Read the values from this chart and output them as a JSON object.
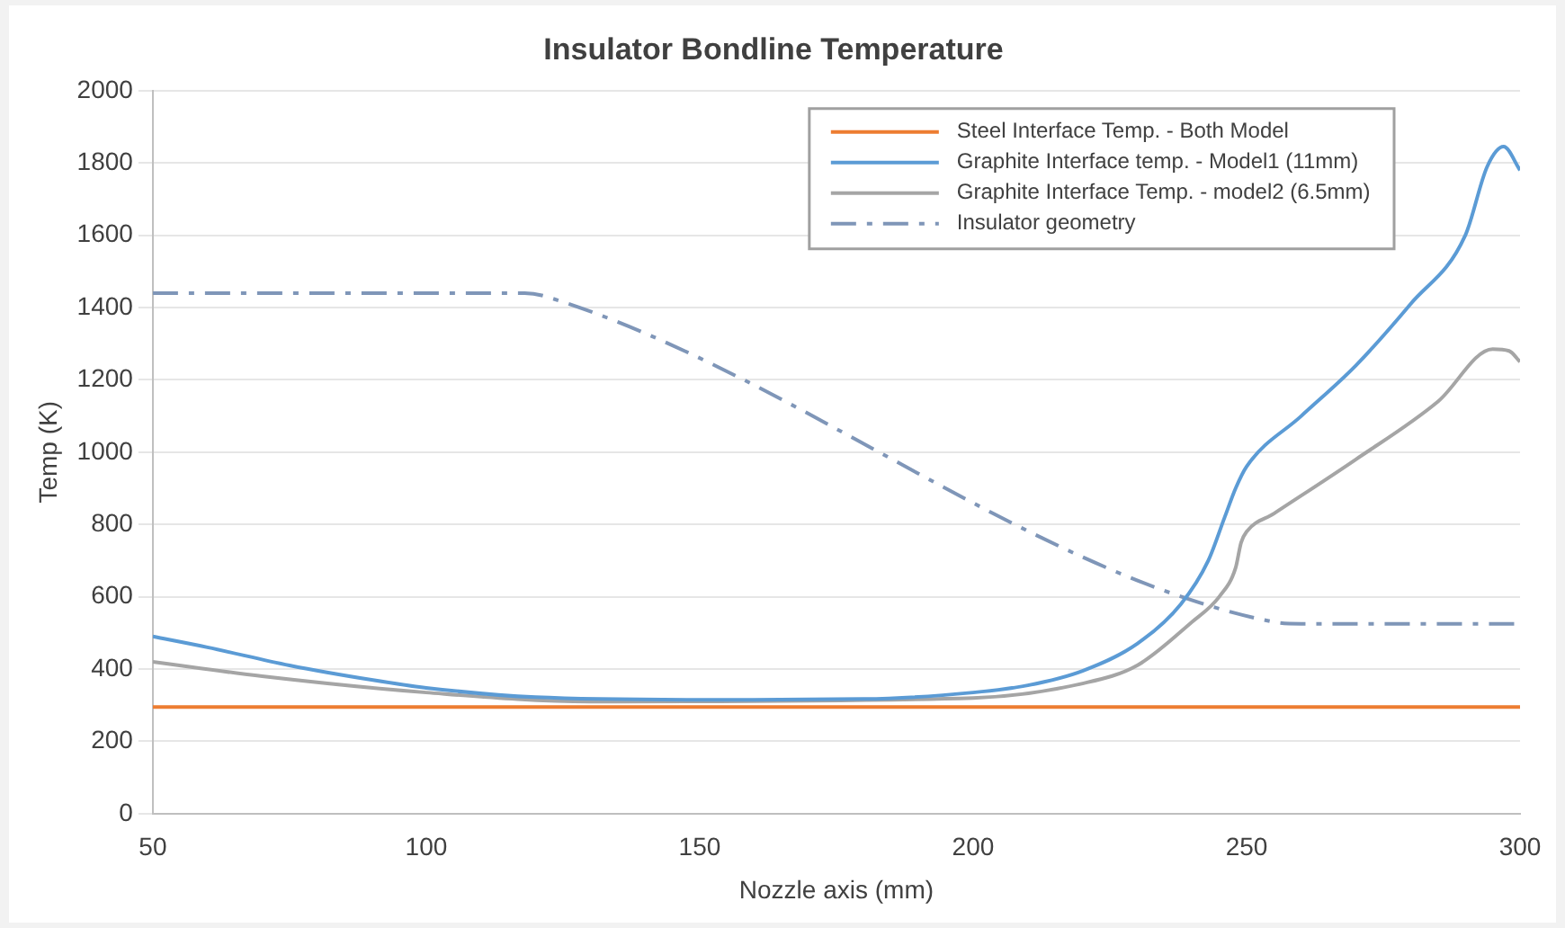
{
  "chart_data": {
    "type": "line",
    "title": "Insulator Bondline Temperature",
    "xlabel": "Nozzle axis (mm)",
    "ylabel": "Temp (K)",
    "xlim": [
      50,
      300
    ],
    "xticks": [
      50,
      100,
      150,
      200,
      250,
      300
    ],
    "ylim": [
      0,
      2000
    ],
    "yticks": [
      0,
      200,
      400,
      600,
      800,
      1000,
      1200,
      1400,
      1600,
      1800,
      2000
    ],
    "grid": "y",
    "legend": "top right",
    "marker": "none",
    "series": [
      {
        "name": "Steel Interface Temp. - Both Model",
        "color": "#ed7d31",
        "x": [
          50,
          300
        ],
        "values": [
          295,
          295
        ]
      },
      {
        "name": "Graphite Interface temp. - Model1 (11mm)",
        "color": "#5b9bd5",
        "x": [
          50,
          60,
          75,
          90,
          100,
          120,
          150,
          180,
          200,
          210,
          220,
          230,
          238,
          243,
          246,
          248,
          250,
          260,
          270,
          280,
          290,
          294,
          297,
          300
        ],
        "values": [
          490,
          460,
          410,
          370,
          348,
          322,
          315,
          317,
          335,
          355,
          395,
          470,
          580,
          700,
          820,
          900,
          960,
          1100,
          1240,
          1410,
          1600,
          1790,
          1845,
          1780
        ]
      },
      {
        "name": "Graphite Interface Temp. - model2 (6.5mm)",
        "color": "#a5a5a5",
        "x": [
          50,
          70,
          100,
          130,
          200,
          220,
          230,
          240,
          245,
          248,
          249,
          250,
          255,
          270,
          285,
          295,
          298,
          300
        ],
        "values": [
          420,
          380,
          335,
          310,
          320,
          360,
          410,
          530,
          600,
          680,
          750,
          780,
          830,
          980,
          1140,
          1285,
          1280,
          1250
        ]
      },
      {
        "name": "Insulator geometry",
        "color": "#7f96b8",
        "line_style": "dashed",
        "x": [
          50,
          118,
          122,
          255,
          260,
          300
        ],
        "values": [
          1440,
          1440,
          1430,
          530,
          525,
          525
        ]
      }
    ]
  }
}
